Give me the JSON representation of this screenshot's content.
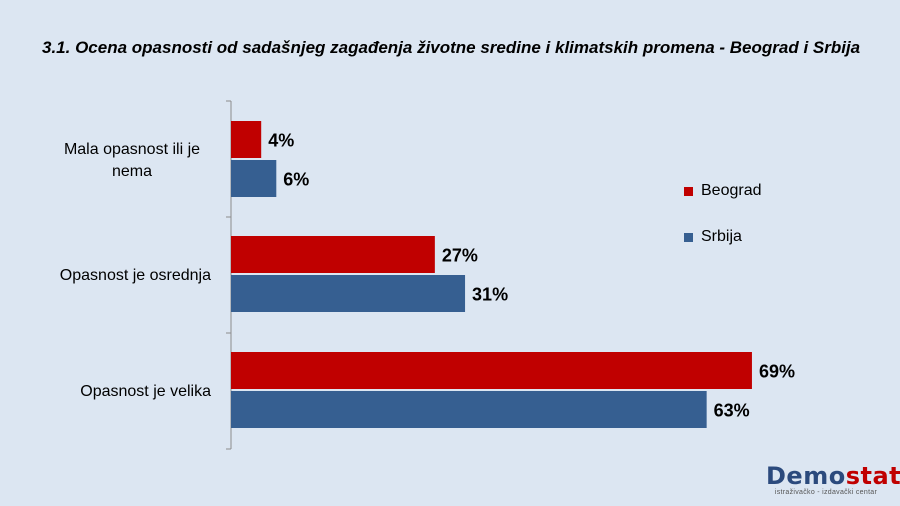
{
  "title": "3.1. Ocena opasnosti od sadašnjeg zagađenja životne sredine i klimatskih promena  - Beograd i Srbija",
  "chart_data": {
    "type": "bar",
    "orientation": "horizontal",
    "categories": [
      "Mala opasnost ili je nema",
      "Opasnost je osrednja",
      "Opasnost je velika"
    ],
    "series": [
      {
        "name": "Beograd",
        "values": [
          4,
          27,
          69
        ],
        "labels": [
          "4%",
          "27%",
          "69%"
        ],
        "color": "#c00000"
      },
      {
        "name": "Srbija",
        "values": [
          6,
          31,
          63
        ],
        "labels": [
          "6%",
          "31%",
          "63%"
        ],
        "color": "#365f91"
      }
    ],
    "xlim": [
      0,
      75
    ],
    "grid": false,
    "legend_position": "right"
  },
  "logo": {
    "demo": "Demo",
    "stat": "stat",
    "sub": "istraživačko - izdavački centar"
  }
}
